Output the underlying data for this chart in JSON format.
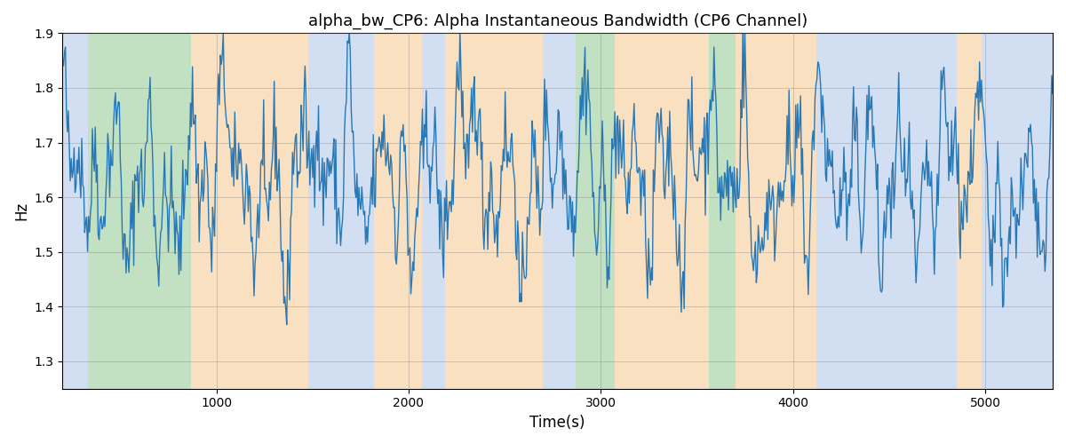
{
  "title": "alpha_bw_CP6: Alpha Instantaneous Bandwidth (CP6 Channel)",
  "xlabel": "Time(s)",
  "ylabel": "Hz",
  "ylim": [
    1.25,
    1.9
  ],
  "xlim": [
    200,
    5350
  ],
  "yticks": [
    1.3,
    1.4,
    1.5,
    1.6,
    1.7,
    1.8,
    1.9
  ],
  "xticks": [
    1000,
    2000,
    3000,
    4000,
    5000
  ],
  "line_color": "#2878b5",
  "line_width": 1.0,
  "bg_bands": [
    {
      "xmin": 200,
      "xmax": 330,
      "color": "#aec6e8",
      "alpha": 0.55
    },
    {
      "xmin": 330,
      "xmax": 870,
      "color": "#90c990",
      "alpha": 0.55
    },
    {
      "xmin": 870,
      "xmax": 1480,
      "color": "#f5c78e",
      "alpha": 0.55
    },
    {
      "xmin": 1480,
      "xmax": 1820,
      "color": "#aec6e8",
      "alpha": 0.55
    },
    {
      "xmin": 1820,
      "xmax": 2070,
      "color": "#f5c78e",
      "alpha": 0.55
    },
    {
      "xmin": 2070,
      "xmax": 2190,
      "color": "#aec6e8",
      "alpha": 0.55
    },
    {
      "xmin": 2190,
      "xmax": 2700,
      "color": "#f5c78e",
      "alpha": 0.55
    },
    {
      "xmin": 2700,
      "xmax": 2870,
      "color": "#aec6e8",
      "alpha": 0.55
    },
    {
      "xmin": 2870,
      "xmax": 3070,
      "color": "#90c990",
      "alpha": 0.55
    },
    {
      "xmin": 3070,
      "xmax": 3560,
      "color": "#f5c78e",
      "alpha": 0.55
    },
    {
      "xmin": 3560,
      "xmax": 3700,
      "color": "#90c990",
      "alpha": 0.55
    },
    {
      "xmin": 3700,
      "xmax": 4120,
      "color": "#f5c78e",
      "alpha": 0.55
    },
    {
      "xmin": 4120,
      "xmax": 4850,
      "color": "#aec6e8",
      "alpha": 0.55
    },
    {
      "xmin": 4850,
      "xmax": 4980,
      "color": "#f5c78e",
      "alpha": 0.55
    },
    {
      "xmin": 4980,
      "xmax": 5350,
      "color": "#aec6e8",
      "alpha": 0.55
    }
  ],
  "seed": 42,
  "n_points": 1030,
  "x_start": 200,
  "x_end": 5350
}
